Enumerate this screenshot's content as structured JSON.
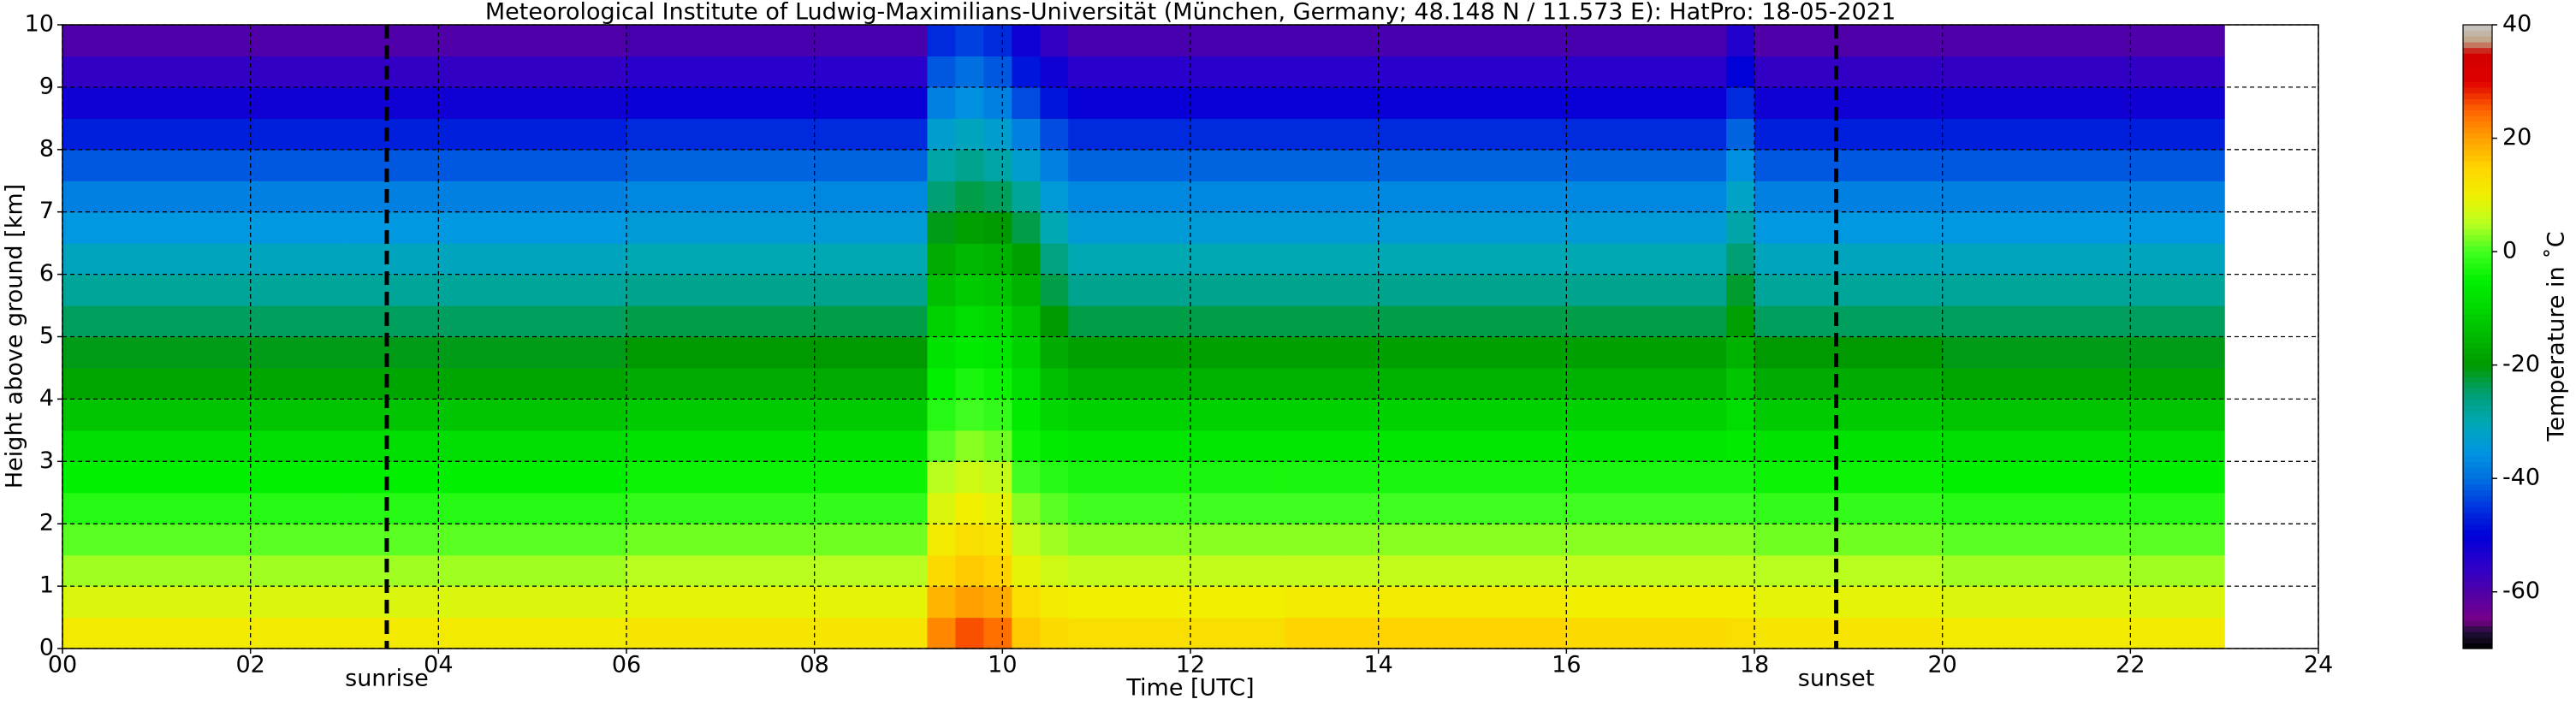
{
  "chart_data": {
    "type": "heatmap",
    "title": "Meteorological Institute of Ludwig-Maximilians-Universität (München, Germany; 48.148 N / 11.573 E):    HatPro: 18-05-2021",
    "x_label": "Time [UTC]",
    "y_label": "Height above ground [km]",
    "colorbar_label": "Temperature in ˚C",
    "x_bins": [
      0,
      3,
      6,
      9.2,
      9.5,
      9.8,
      10.1,
      10.4,
      10.7,
      13,
      16,
      17.7,
      18,
      20,
      23
    ],
    "y_bins": [
      0,
      0.5,
      1,
      1.5,
      2,
      2.5,
      3,
      3.5,
      4,
      4.5,
      5,
      5.5,
      6,
      6.5,
      7,
      7.5,
      8,
      8.5,
      9,
      9.5,
      10
    ],
    "values": [
      [
        11,
        11,
        12,
        22,
        26,
        24,
        16,
        14,
        13,
        15,
        14,
        13,
        12,
        11
      ],
      [
        8,
        8,
        9,
        18,
        20,
        19,
        13,
        11,
        10,
        11,
        10,
        10,
        9,
        8
      ],
      [
        4,
        4,
        5,
        14,
        16,
        15,
        9,
        7,
        6,
        6,
        6,
        6,
        5,
        4
      ],
      [
        1,
        1,
        2,
        11,
        13,
        12,
        6,
        4,
        3,
        3,
        3,
        3,
        2,
        1
      ],
      [
        -2,
        -2,
        -1,
        8,
        10,
        9,
        3,
        1,
        0,
        0,
        0,
        0,
        -1,
        -2
      ],
      [
        -5,
        -5,
        -4,
        5,
        7,
        6,
        0,
        -2,
        -3,
        -3,
        -3,
        -3,
        -4,
        -5
      ],
      [
        -9,
        -9,
        -8,
        1,
        3,
        2,
        -4,
        -6,
        -7,
        -7,
        -7,
        -6,
        -8,
        -9
      ],
      [
        -13,
        -13,
        -12,
        -2,
        0,
        -1,
        -6,
        -10,
        -11,
        -11,
        -11,
        -9,
        -12,
        -13
      ],
      [
        -18,
        -18,
        -17,
        -5,
        -3,
        -4,
        -9,
        -14,
        -16,
        -16,
        -16,
        -13,
        -17,
        -18
      ],
      [
        -21,
        -21,
        -20,
        -8,
        -6,
        -7,
        -11,
        -17,
        -19,
        -19,
        -19,
        -16,
        -20,
        -21
      ],
      [
        -24,
        -24,
        -23,
        -11,
        -9,
        -10,
        -13,
        -20,
        -23,
        -23,
        -23,
        -19,
        -24,
        -24
      ],
      [
        -28,
        -28,
        -27,
        -14,
        -12,
        -13,
        -16,
        -23,
        -27,
        -27,
        -27,
        -22,
        -28,
        -28
      ],
      [
        -31,
        -31,
        -30,
        -17,
        -15,
        -16,
        -19,
        -26,
        -30,
        -30,
        -30,
        -25,
        -31,
        -31
      ],
      [
        -35,
        -35,
        -34,
        -21,
        -19,
        -20,
        -23,
        -30,
        -34,
        -34,
        -34,
        -29,
        -35,
        -35
      ],
      [
        -38,
        -38,
        -37,
        -25,
        -23,
        -24,
        -28,
        -34,
        -37,
        -37,
        -37,
        -32,
        -38,
        -38
      ],
      [
        -42,
        -42,
        -41,
        -29,
        -27,
        -29,
        -33,
        -38,
        -41,
        -41,
        -41,
        -36,
        -42,
        -42
      ],
      [
        -47,
        -47,
        -46,
        -33,
        -31,
        -33,
        -38,
        -43,
        -46,
        -46,
        -46,
        -41,
        -47,
        -47
      ],
      [
        -52,
        -52,
        -51,
        -38,
        -36,
        -38,
        -43,
        -48,
        -51,
        -51,
        -51,
        -46,
        -52,
        -52
      ],
      [
        -56,
        -56,
        -55,
        -42,
        -40,
        -42,
        -48,
        -52,
        -55,
        -55,
        -55,
        -50,
        -56,
        -56
      ],
      [
        -60,
        -60,
        -59,
        -46,
        -44,
        -46,
        -52,
        -56,
        -59,
        -59,
        -59,
        -54,
        -60,
        -60
      ]
    ],
    "xlim": [
      0,
      24
    ],
    "ylim": [
      0,
      10
    ],
    "xticks": [
      {
        "value": 0,
        "label": "00"
      },
      {
        "value": 2,
        "label": "02"
      },
      {
        "value": 4,
        "label": "04"
      },
      {
        "value": 6,
        "label": "06"
      },
      {
        "value": 8,
        "label": "08"
      },
      10,
      12,
      14,
      16,
      18,
      20,
      22,
      24
    ],
    "yticks": [
      0,
      1,
      2,
      3,
      4,
      5,
      6,
      7,
      8,
      9,
      10
    ],
    "grid": true,
    "zlim": [
      -70,
      40
    ],
    "zticks": [
      -60,
      -40,
      -20,
      0,
      20,
      40
    ],
    "colorscale": [
      [
        -70,
        "#000000"
      ],
      [
        -67,
        "#20103a"
      ],
      [
        -65,
        "#780088"
      ],
      [
        -60,
        "#5000a8"
      ],
      [
        -55,
        "#2a00cc"
      ],
      [
        -50,
        "#0000d8"
      ],
      [
        -45,
        "#0034e0"
      ],
      [
        -40,
        "#0070e0"
      ],
      [
        -35,
        "#0098e0"
      ],
      [
        -30,
        "#00a8b4"
      ],
      [
        -25,
        "#00a074"
      ],
      [
        -20,
        "#009a00"
      ],
      [
        -15,
        "#00b800"
      ],
      [
        -10,
        "#00d800"
      ],
      [
        -5,
        "#00f000"
      ],
      [
        0,
        "#40ff20"
      ],
      [
        5,
        "#b8ff20"
      ],
      [
        10,
        "#f0f000"
      ],
      [
        15,
        "#ffd400"
      ],
      [
        20,
        "#ffa000"
      ],
      [
        25,
        "#ff6400"
      ],
      [
        30,
        "#e00000"
      ],
      [
        35,
        "#d00000"
      ],
      [
        37,
        "#c0a080"
      ],
      [
        40,
        "#c8c8c8"
      ]
    ],
    "annotations": [
      {
        "x": 3.45,
        "label": "sunrise"
      },
      {
        "x": 18.87,
        "label": "sunset"
      }
    ]
  }
}
